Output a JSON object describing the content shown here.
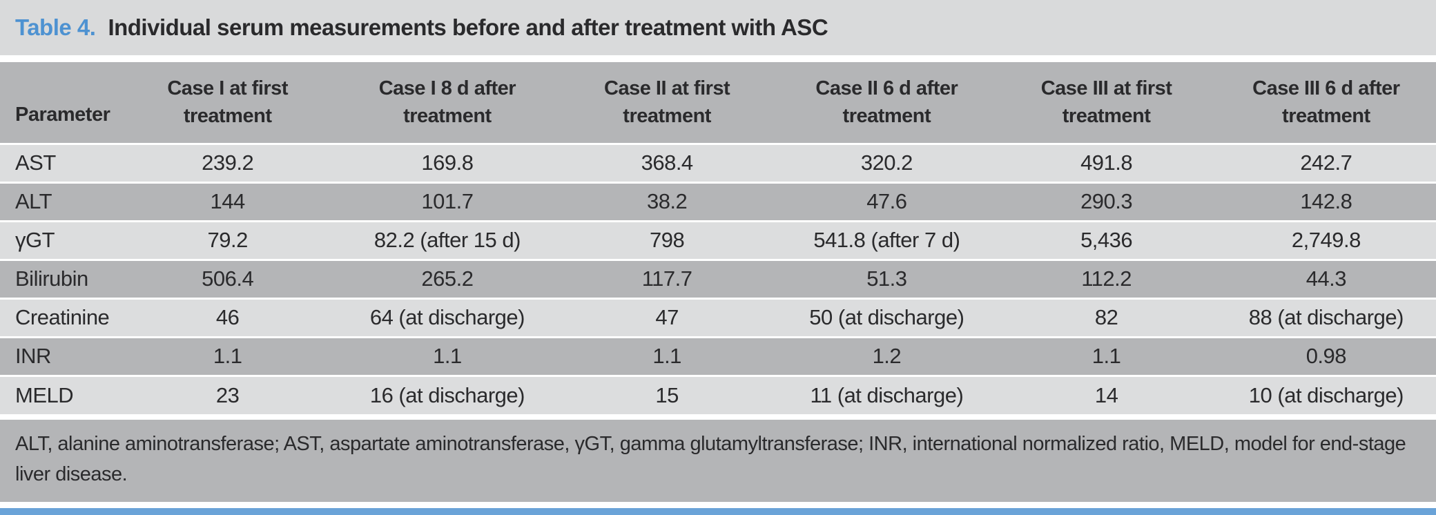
{
  "title": {
    "label": "Table 4.",
    "text": "Individual serum measurements before and after treatment with ASC"
  },
  "table": {
    "columns": [
      "Parameter",
      "Case I at first treatment",
      "Case I 8 d after treatment",
      "Case II at first treatment",
      "Case II 6 d after treatment",
      "Case III at first treatment",
      "Case III 6 d after treatment"
    ],
    "rows": [
      {
        "parameter": "AST",
        "values": [
          "239.2",
          "169.8",
          "368.4",
          "320.2",
          "491.8",
          "242.7"
        ]
      },
      {
        "parameter": "ALT",
        "values": [
          "144",
          "101.7",
          "38.2",
          "47.6",
          "290.3",
          "142.8"
        ]
      },
      {
        "parameter": "γGT",
        "values": [
          "79.2",
          "82.2 (after 15 d)",
          "798",
          "541.8 (after 7 d)",
          "5,436",
          "2,749.8"
        ]
      },
      {
        "parameter": "Bilirubin",
        "values": [
          "506.4",
          "265.2",
          "117.7",
          "51.3",
          "112.2",
          "44.3"
        ]
      },
      {
        "parameter": "Creatinine",
        "values": [
          "46",
          "64 (at discharge)",
          "47",
          "50 (at discharge)",
          "82",
          "88 (at discharge)"
        ]
      },
      {
        "parameter": "INR",
        "values": [
          "1.1",
          "1.1",
          "1.1",
          "1.2",
          "1.1",
          "0.98"
        ]
      },
      {
        "parameter": "MELD",
        "values": [
          "23",
          "16 (at discharge)",
          "15",
          "11 (at discharge)",
          "14",
          "10 (at discharge)"
        ]
      }
    ],
    "footnote": "ALT, alanine aminotransferase; AST, aspartate aminotransferase, γGT, gamma glutamyltransferase; INR, international normalized ratio, MELD, model for end-stage liver disease."
  },
  "chart_data": {
    "type": "table",
    "title": "Table 4. Individual serum measurements before and after treatment with ASC",
    "categories": [
      "Parameter",
      "Case I at first treatment",
      "Case I 8 d after treatment",
      "Case II at first treatment",
      "Case II 6 d after treatment",
      "Case III at first treatment",
      "Case III 6 d after treatment"
    ],
    "series": [
      {
        "name": "AST",
        "values": [
          239.2,
          169.8,
          368.4,
          320.2,
          491.8,
          242.7
        ]
      },
      {
        "name": "ALT",
        "values": [
          144,
          101.7,
          38.2,
          47.6,
          290.3,
          142.8
        ]
      },
      {
        "name": "γGT",
        "values": [
          79.2,
          82.2,
          798,
          541.8,
          5436,
          2749.8
        ]
      },
      {
        "name": "Bilirubin",
        "values": [
          506.4,
          265.2,
          117.7,
          51.3,
          112.2,
          44.3
        ]
      },
      {
        "name": "Creatinine",
        "values": [
          46,
          64,
          47,
          50,
          82,
          88
        ]
      },
      {
        "name": "INR",
        "values": [
          1.1,
          1.1,
          1.1,
          1.2,
          1.1,
          0.98
        ]
      },
      {
        "name": "MELD",
        "values": [
          23,
          16,
          15,
          11,
          14,
          10
        ]
      }
    ]
  },
  "colors": {
    "title_accent": "#4e92d1",
    "band_light": "#d9dadb",
    "band_medium": "#b4b5b7",
    "row_light": "#dcddde",
    "row_medium": "#b4b5b7",
    "text": "#2a2a2c",
    "bottom_rule": "#6aa3d8"
  }
}
